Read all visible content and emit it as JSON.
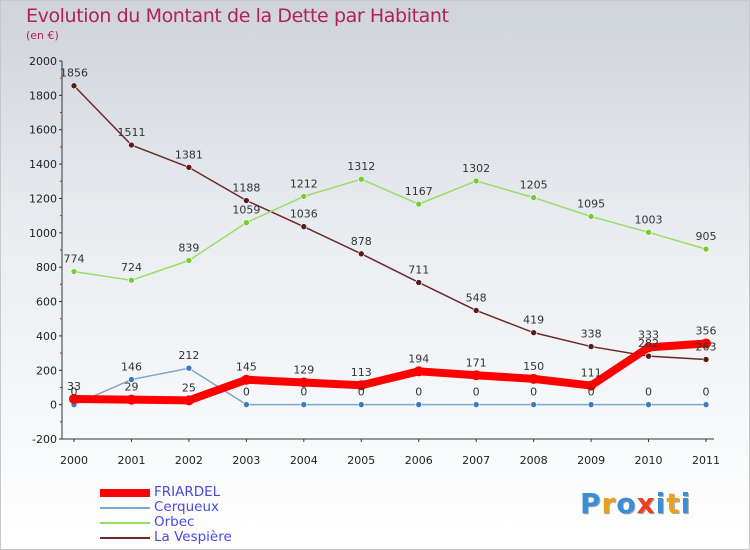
{
  "header": {
    "title": "Evolution du Montant de la Dette par Habitant",
    "subtitle": "(en €)"
  },
  "logo": {
    "text": "Proxiti",
    "letter_colors": [
      "#3a8ed6",
      "#e8a020",
      "#3a8ed6",
      "#e84020",
      "#3a8ed6",
      "#e8a020",
      "#3a8ed6"
    ]
  },
  "chart_data": {
    "type": "line",
    "title": "Evolution du Montant de la Dette par Habitant",
    "subtitle": "(en €)",
    "x": [
      "2000",
      "2001",
      "2002",
      "2003",
      "2004",
      "2005",
      "2006",
      "2007",
      "2008",
      "2009",
      "2010",
      "2011"
    ],
    "ylim": [
      -200,
      2000
    ],
    "yticks": [
      "-200",
      "0",
      "200",
      "400",
      "600",
      "800",
      "1000",
      "1200",
      "1400",
      "1600",
      "1800",
      "2000"
    ],
    "grid": false,
    "legend_position": "bottom-left",
    "series": [
      {
        "name": "FRIARDEL",
        "color": "#ff0000",
        "values": [
          33,
          29,
          25,
          145,
          129,
          113,
          194,
          171,
          150,
          111,
          333,
          356
        ],
        "labels": [
          "33",
          "29",
          "25",
          "145",
          "129",
          "113",
          "194",
          "171",
          "150",
          "111",
          "333",
          "356"
        ]
      },
      {
        "name": "Cerqueux",
        "color": "#7aa8d0",
        "values": [
          0,
          146,
          212,
          0,
          0,
          0,
          0,
          0,
          0,
          0,
          0,
          0
        ],
        "labels": [
          "0",
          "146",
          "212",
          "0",
          "0",
          "0",
          "0",
          "0",
          "0",
          "0",
          "0",
          "0"
        ]
      },
      {
        "name": "Orbec",
        "color": "#99dd66",
        "values": [
          774,
          724,
          839,
          1059,
          1212,
          1312,
          1167,
          1302,
          1205,
          1095,
          1003,
          905
        ],
        "labels": [
          "774",
          "724",
          "839",
          "1059",
          "1212",
          "1312",
          "1167",
          "1302",
          "1205",
          "1095",
          "1003",
          "905"
        ]
      },
      {
        "name": "La Vespière",
        "color": "#6b2a2a",
        "values": [
          1856,
          1511,
          1381,
          1188,
          1036,
          878,
          711,
          548,
          419,
          338,
          282,
          263
        ],
        "labels": [
          "1856",
          "1511",
          "1381",
          "1188",
          "1036",
          "878",
          "711",
          "548",
          "419",
          "338",
          "282",
          "263"
        ]
      }
    ]
  }
}
